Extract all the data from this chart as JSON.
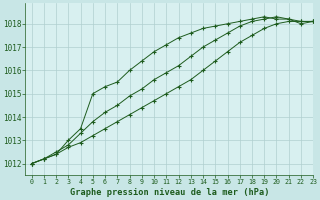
{
  "title": "Graphe pression niveau de la mer (hPa)",
  "background_color": "#c8e6e6",
  "plot_bg_color": "#d8f0f0",
  "grid_color": "#b0d0d0",
  "line_color": "#1e5c1e",
  "xlim": [
    -0.5,
    23
  ],
  "ylim": [
    1011.5,
    1018.9
  ],
  "yticks": [
    1012,
    1013,
    1014,
    1015,
    1016,
    1017,
    1018
  ],
  "xticks": [
    0,
    1,
    2,
    3,
    4,
    5,
    6,
    7,
    8,
    9,
    10,
    11,
    12,
    13,
    14,
    15,
    16,
    17,
    18,
    19,
    20,
    21,
    22,
    23
  ],
  "series": [
    [
      1012.0,
      1012.2,
      1012.4,
      1012.7,
      1012.9,
      1013.2,
      1013.5,
      1013.8,
      1014.1,
      1014.4,
      1014.7,
      1015.0,
      1015.3,
      1015.6,
      1016.0,
      1016.4,
      1016.8,
      1017.2,
      1017.5,
      1017.8,
      1018.0,
      1018.1,
      1018.1,
      1018.1
    ],
    [
      1012.0,
      1012.2,
      1012.5,
      1012.8,
      1013.3,
      1013.8,
      1014.2,
      1014.5,
      1014.9,
      1015.2,
      1015.6,
      1015.9,
      1016.2,
      1016.6,
      1017.0,
      1017.3,
      1017.6,
      1017.9,
      1018.1,
      1018.2,
      1018.3,
      1018.2,
      1018.1,
      1018.1
    ],
    [
      1012.0,
      1012.2,
      1012.4,
      1013.0,
      1013.5,
      1015.0,
      1015.3,
      1015.5,
      1016.0,
      1016.4,
      1016.8,
      1017.1,
      1017.4,
      1017.6,
      1017.8,
      1017.9,
      1018.0,
      1018.1,
      1018.2,
      1018.3,
      1018.2,
      1018.2,
      1018.0,
      1018.1
    ]
  ]
}
